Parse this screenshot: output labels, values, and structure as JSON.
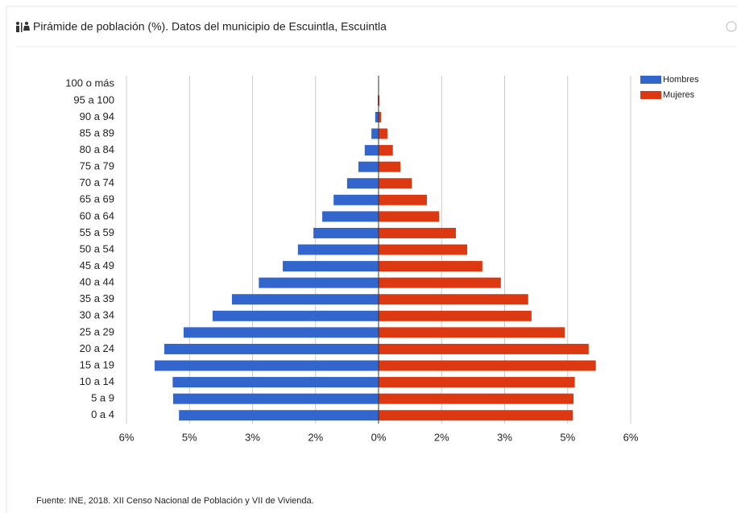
{
  "chart_data": {
    "type": "pyramid",
    "title": "Pirámide de población (%). Datos del municipio de Escuintla, Escuintla",
    "source": "Fuente: INE, 2018. XII Censo Nacional de Población y VII de Vivienda.",
    "categories": [
      "0 a 4",
      "5 a 9",
      "10 a 14",
      "15 a 19",
      "20 a 24",
      "25 a 29",
      "30 a 34",
      "35 a 39",
      "40 a 44",
      "45 a 49",
      "50 a 54",
      "55 a 59",
      "60 a 64",
      "65 a 69",
      "70 a 74",
      "75 a 79",
      "80 a 84",
      "85 a 89",
      "90 a 94",
      "95 a 100",
      "100 o más"
    ],
    "series": [
      {
        "name": "Hombres",
        "color": "#3366cc",
        "values": [
          -4.75,
          -4.89,
          -4.9,
          -5.33,
          -5.1,
          -4.64,
          -3.95,
          -3.49,
          -2.85,
          -2.28,
          -1.92,
          -1.55,
          -1.34,
          -1.07,
          -0.75,
          -0.48,
          -0.33,
          -0.17,
          -0.08,
          -0.02,
          -0.01
        ]
      },
      {
        "name": "Mujeres",
        "color": "#dc3912",
        "values": [
          4.62,
          4.64,
          4.67,
          5.17,
          5.0,
          4.43,
          3.64,
          3.56,
          2.91,
          2.47,
          2.11,
          1.84,
          1.44,
          1.15,
          0.79,
          0.52,
          0.34,
          0.21,
          0.06,
          0.02,
          0.01
        ]
      }
    ],
    "xlim": [
      -6,
      6
    ],
    "xticks": [
      {
        "value": -6,
        "label": "6%"
      },
      {
        "value": -4.5,
        "label": "5%"
      },
      {
        "value": -3,
        "label": "3%"
      },
      {
        "value": -1.5,
        "label": "2%"
      },
      {
        "value": 0,
        "label": "0%"
      },
      {
        "value": 1.5,
        "label": "2%"
      },
      {
        "value": 3,
        "label": "3%"
      },
      {
        "value": 4.5,
        "label": "5%"
      },
      {
        "value": 6,
        "label": "6%"
      }
    ],
    "grid": true,
    "legend": "top-right"
  }
}
